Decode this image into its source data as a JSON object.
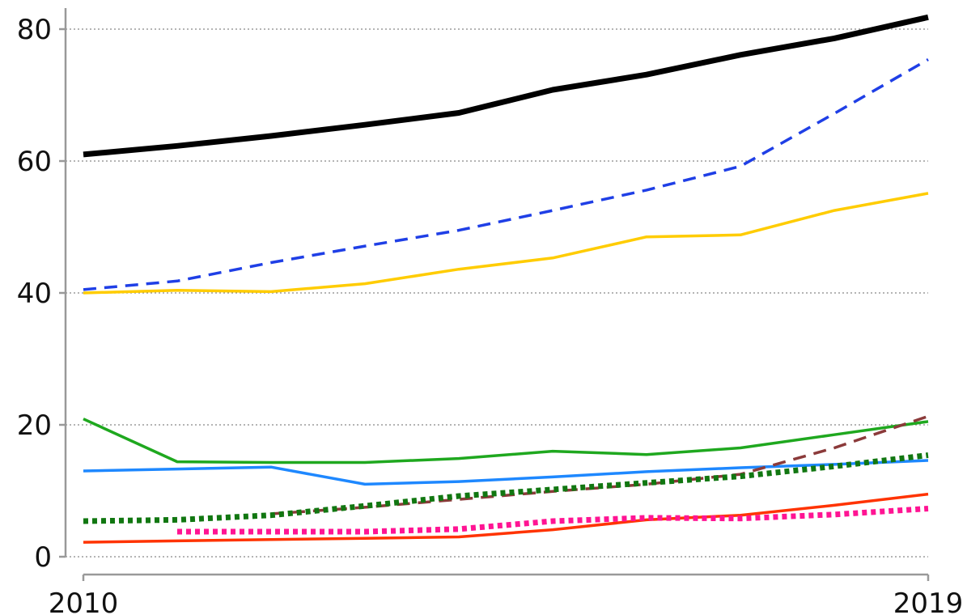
{
  "chart_data": {
    "type": "line",
    "title": "",
    "xlabel": "",
    "ylabel": "",
    "xlim": [
      2010,
      2019
    ],
    "ylim": [
      0,
      80
    ],
    "x_tick_labels": [
      "2010",
      "2019"
    ],
    "y_tick_labels": [
      "0",
      "20",
      "40",
      "60",
      "80"
    ],
    "y_ticks": [
      0,
      20,
      40,
      60,
      80
    ],
    "grid": true,
    "legend": "none",
    "x": [
      2010,
      2011,
      2012,
      2013,
      2014,
      2015,
      2016,
      2017,
      2018,
      2019
    ],
    "series": [
      {
        "color": "#000000",
        "style": "solid-thick",
        "values": [
          61,
          62.3,
          63.8,
          65.5,
          67.3,
          70.8,
          73.1,
          76.1,
          78.6,
          81.8
        ]
      },
      {
        "color": "#1f3fe6",
        "style": "dashed",
        "values": [
          40.5,
          41.8,
          44.6,
          47.1,
          49.5,
          52.5,
          55.6,
          59.2,
          67.2,
          75.4
        ]
      },
      {
        "color": "#ffcc00",
        "style": "solid",
        "values": [
          40,
          40.4,
          40.2,
          41.4,
          43.6,
          45.3,
          48.5,
          48.8,
          52.5,
          55.1
        ]
      },
      {
        "color": "#1fa81f",
        "style": "solid",
        "values": [
          20.9,
          14.4,
          14.3,
          14.3,
          14.9,
          16,
          15.5,
          16.5,
          18.5,
          20.5
        ]
      },
      {
        "color": "#1e88ff",
        "style": "solid",
        "values": [
          13,
          13.3,
          13.6,
          11,
          11.4,
          12.1,
          12.9,
          13.5,
          14,
          14.6
        ]
      },
      {
        "color": "#8b3a3a",
        "style": "dashed",
        "values": [
          null,
          null,
          6.5,
          7.5,
          8.7,
          9.9,
          11,
          12.5,
          16.5,
          21.3
        ]
      },
      {
        "color": "#117711",
        "style": "dotted-thick",
        "values": [
          5.4,
          5.6,
          6.3,
          7.7,
          9.2,
          10.2,
          11.2,
          12.2,
          13.7,
          15.4
        ]
      },
      {
        "color": "#ff3300",
        "style": "solid",
        "values": [
          2.2,
          2.4,
          2.6,
          2.8,
          3,
          4.1,
          5.6,
          6.3,
          7.8,
          9.5
        ]
      },
      {
        "color": "#ff1493",
        "style": "dotted-thick",
        "values": [
          null,
          3.8,
          3.8,
          3.8,
          4.2,
          5.4,
          5.9,
          5.8,
          6.4,
          7.3
        ]
      }
    ]
  }
}
